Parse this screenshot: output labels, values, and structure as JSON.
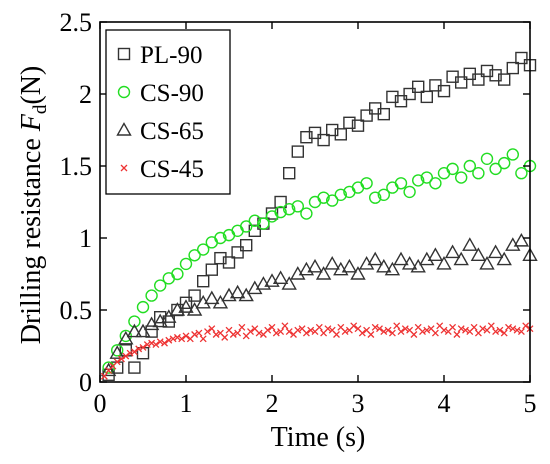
{
  "chart_data": {
    "type": "scatter",
    "xlabel": "Time (s)",
    "ylabel": {
      "main": "Drilling resistance ",
      "symbol": "F",
      "subscript": "d",
      "unit": "(N)"
    },
    "xlim": [
      0,
      5
    ],
    "ylim": [
      0,
      2.5
    ],
    "xticks": [
      0,
      1,
      2,
      3,
      4,
      5
    ],
    "xtick_labels": [
      "0",
      "1",
      "2",
      "3",
      "4",
      "5"
    ],
    "yticks": [
      0,
      0.5,
      1,
      1.5,
      2,
      2.5
    ],
    "ytick_labels": [
      "0",
      "0.5",
      "1",
      "1.5",
      "2",
      "2.5"
    ],
    "grid": false,
    "legend_position": "top-left",
    "series": [
      {
        "name": "PL-90",
        "marker": "square",
        "color": "#333333",
        "x": [
          0.1,
          0.2,
          0.3,
          0.4,
          0.5,
          0.6,
          0.7,
          0.8,
          0.9,
          1.0,
          1.1,
          1.2,
          1.3,
          1.4,
          1.5,
          1.6,
          1.7,
          1.8,
          1.9,
          2.0,
          2.1,
          2.2,
          2.3,
          2.4,
          2.5,
          2.6,
          2.7,
          2.8,
          2.9,
          3.0,
          3.1,
          3.2,
          3.3,
          3.4,
          3.5,
          3.6,
          3.7,
          3.8,
          3.9,
          4.0,
          4.1,
          4.2,
          4.3,
          4.4,
          4.5,
          4.6,
          4.7,
          4.8,
          4.9,
          5.0
        ],
        "y": [
          0.05,
          0.1,
          0.22,
          0.1,
          0.2,
          0.35,
          0.45,
          0.42,
          0.5,
          0.55,
          0.6,
          0.7,
          0.78,
          0.86,
          0.83,
          0.9,
          0.95,
          1.05,
          1.1,
          1.17,
          1.25,
          1.45,
          1.6,
          1.7,
          1.73,
          1.68,
          1.75,
          1.72,
          1.8,
          1.78,
          1.85,
          1.9,
          1.86,
          1.98,
          1.95,
          2.0,
          2.05,
          1.98,
          2.06,
          2.02,
          2.12,
          2.08,
          2.14,
          2.1,
          2.16,
          2.13,
          2.1,
          2.18,
          2.25,
          2.2
        ]
      },
      {
        "name": "CS-90",
        "marker": "circle",
        "color": "#22dd22",
        "x": [
          0.1,
          0.2,
          0.3,
          0.4,
          0.5,
          0.6,
          0.7,
          0.8,
          0.9,
          1.0,
          1.1,
          1.2,
          1.3,
          1.4,
          1.5,
          1.6,
          1.7,
          1.8,
          1.9,
          2.0,
          2.1,
          2.2,
          2.3,
          2.4,
          2.5,
          2.6,
          2.7,
          2.8,
          2.9,
          3.0,
          3.1,
          3.2,
          3.3,
          3.4,
          3.5,
          3.6,
          3.7,
          3.8,
          3.9,
          4.0,
          4.1,
          4.2,
          4.3,
          4.4,
          4.5,
          4.6,
          4.7,
          4.8,
          4.9,
          5.0
        ],
        "y": [
          0.1,
          0.22,
          0.32,
          0.42,
          0.52,
          0.6,
          0.67,
          0.72,
          0.75,
          0.82,
          0.88,
          0.92,
          0.97,
          1.0,
          1.02,
          1.05,
          1.08,
          1.12,
          1.1,
          1.15,
          1.18,
          1.2,
          1.22,
          1.17,
          1.25,
          1.28,
          1.26,
          1.3,
          1.32,
          1.35,
          1.38,
          1.28,
          1.3,
          1.35,
          1.38,
          1.32,
          1.4,
          1.42,
          1.38,
          1.45,
          1.48,
          1.42,
          1.5,
          1.45,
          1.55,
          1.48,
          1.52,
          1.58,
          1.45,
          1.5
        ]
      },
      {
        "name": "CS-65",
        "marker": "triangle",
        "color": "#333333",
        "x": [
          0.1,
          0.2,
          0.3,
          0.4,
          0.5,
          0.6,
          0.7,
          0.8,
          0.9,
          1.0,
          1.1,
          1.2,
          1.3,
          1.4,
          1.5,
          1.6,
          1.7,
          1.8,
          1.9,
          2.0,
          2.1,
          2.2,
          2.3,
          2.4,
          2.5,
          2.6,
          2.7,
          2.8,
          2.9,
          3.0,
          3.1,
          3.2,
          3.3,
          3.4,
          3.5,
          3.6,
          3.7,
          3.8,
          3.9,
          4.0,
          4.1,
          4.2,
          4.3,
          4.4,
          4.5,
          4.6,
          4.7,
          4.8,
          4.9,
          5.0
        ],
        "y": [
          0.08,
          0.2,
          0.3,
          0.35,
          0.35,
          0.4,
          0.42,
          0.45,
          0.5,
          0.52,
          0.5,
          0.55,
          0.58,
          0.55,
          0.6,
          0.62,
          0.6,
          0.65,
          0.68,
          0.7,
          0.72,
          0.68,
          0.75,
          0.78,
          0.8,
          0.75,
          0.82,
          0.78,
          0.8,
          0.75,
          0.82,
          0.85,
          0.8,
          0.78,
          0.85,
          0.82,
          0.8,
          0.85,
          0.88,
          0.82,
          0.9,
          0.85,
          0.95,
          0.88,
          0.82,
          0.9,
          0.85,
          0.95,
          0.98,
          0.88
        ]
      },
      {
        "name": "CS-45",
        "marker": "x",
        "color": "#ee3333",
        "x": [
          0.05,
          0.1,
          0.15,
          0.2,
          0.25,
          0.3,
          0.35,
          0.4,
          0.45,
          0.5,
          0.55,
          0.6,
          0.65,
          0.7,
          0.75,
          0.8,
          0.85,
          0.9,
          0.95,
          1.0,
          1.05,
          1.1,
          1.15,
          1.2,
          1.25,
          1.3,
          1.35,
          1.4,
          1.45,
          1.5,
          1.55,
          1.6,
          1.65,
          1.7,
          1.75,
          1.8,
          1.85,
          1.9,
          1.95,
          2.0,
          2.05,
          2.1,
          2.15,
          2.2,
          2.25,
          2.3,
          2.35,
          2.4,
          2.45,
          2.5,
          2.55,
          2.6,
          2.65,
          2.7,
          2.75,
          2.8,
          2.85,
          2.9,
          2.95,
          3.0,
          3.05,
          3.1,
          3.15,
          3.2,
          3.25,
          3.3,
          3.35,
          3.4,
          3.45,
          3.5,
          3.55,
          3.6,
          3.65,
          3.7,
          3.75,
          3.8,
          3.85,
          3.9,
          3.95,
          4.0,
          4.05,
          4.1,
          4.15,
          4.2,
          4.25,
          4.3,
          4.35,
          4.4,
          4.45,
          4.5,
          4.55,
          4.6,
          4.65,
          4.7,
          4.75,
          4.8,
          4.85,
          4.9,
          4.95,
          5.0
        ],
        "y": [
          0.04,
          0.08,
          0.11,
          0.14,
          0.16,
          0.18,
          0.2,
          0.21,
          0.23,
          0.24,
          0.26,
          0.27,
          0.26,
          0.28,
          0.27,
          0.29,
          0.3,
          0.31,
          0.3,
          0.32,
          0.3,
          0.33,
          0.34,
          0.3,
          0.35,
          0.37,
          0.33,
          0.34,
          0.31,
          0.36,
          0.33,
          0.34,
          0.38,
          0.32,
          0.35,
          0.37,
          0.34,
          0.33,
          0.36,
          0.38,
          0.34,
          0.35,
          0.39,
          0.35,
          0.33,
          0.36,
          0.37,
          0.34,
          0.36,
          0.35,
          0.38,
          0.34,
          0.37,
          0.36,
          0.33,
          0.38,
          0.35,
          0.36,
          0.39,
          0.37,
          0.34,
          0.36,
          0.33,
          0.38,
          0.37,
          0.35,
          0.36,
          0.34,
          0.39,
          0.35,
          0.37,
          0.36,
          0.33,
          0.38,
          0.35,
          0.36,
          0.37,
          0.34,
          0.39,
          0.36,
          0.35,
          0.38,
          0.33,
          0.37,
          0.36,
          0.35,
          0.38,
          0.34,
          0.37,
          0.36,
          0.39,
          0.35,
          0.36,
          0.34,
          0.38,
          0.37,
          0.36,
          0.35,
          0.39,
          0.37
        ]
      }
    ]
  }
}
